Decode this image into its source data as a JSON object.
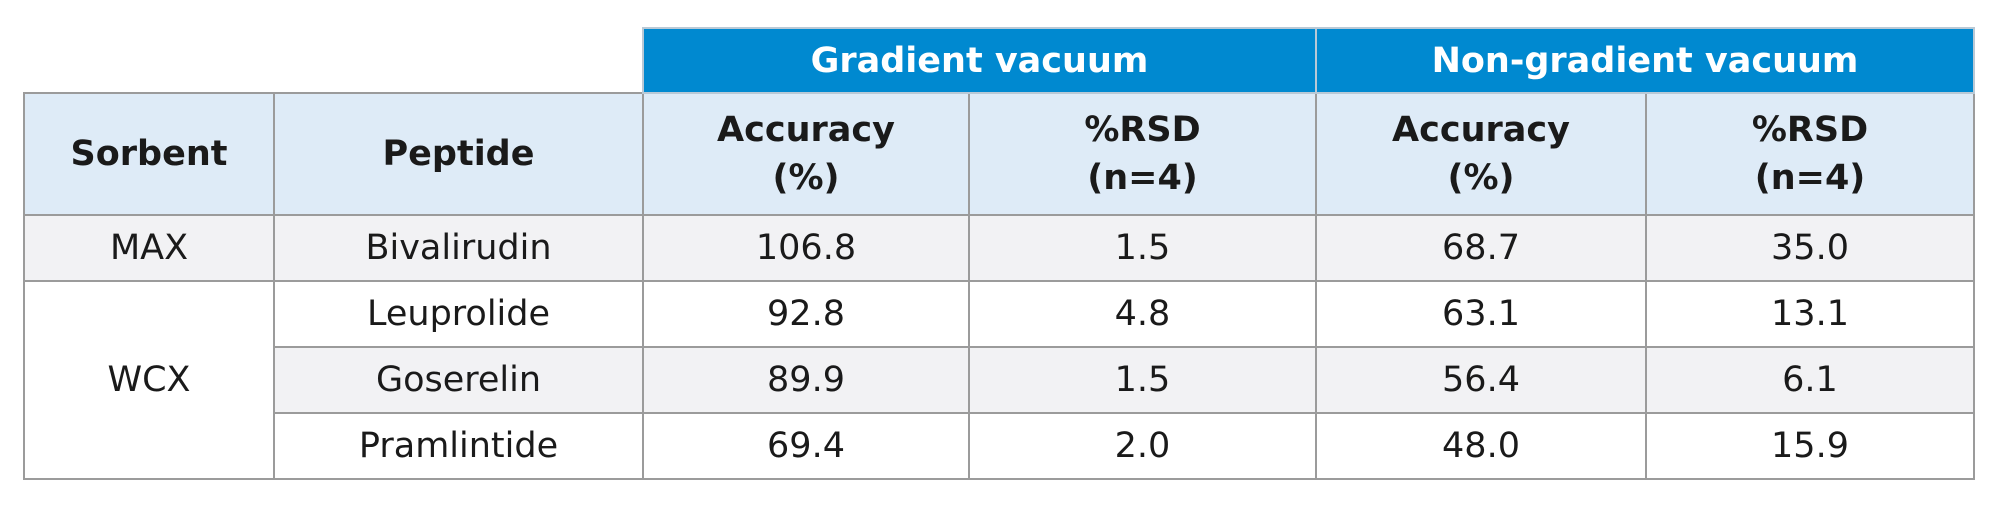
{
  "table": {
    "group_headers": [
      "Gradient vacuum",
      "Non-gradient vacuum"
    ],
    "column_headers": [
      [
        "Sorbent"
      ],
      [
        "Peptide"
      ],
      [
        "Accuracy",
        "(%)"
      ],
      [
        "%RSD",
        "(n=4)"
      ],
      [
        "Accuracy",
        "(%)"
      ],
      [
        "%RSD",
        "(n=4)"
      ]
    ],
    "groups": [
      {
        "sorbent": "MAX",
        "rows": [
          [
            "Bivalirudin",
            "106.8",
            "1.5",
            "68.7",
            "35.0"
          ]
        ]
      },
      {
        "sorbent": "WCX",
        "rows": [
          [
            "Leuprolide",
            "92.8",
            "4.8",
            "63.1",
            "13.1"
          ],
          [
            "Goserelin",
            "89.9",
            "1.5",
            "56.4",
            "6.1"
          ],
          [
            "Pramlintide",
            "69.4",
            "2.0",
            "48.0",
            "15.9"
          ]
        ]
      }
    ]
  }
}
